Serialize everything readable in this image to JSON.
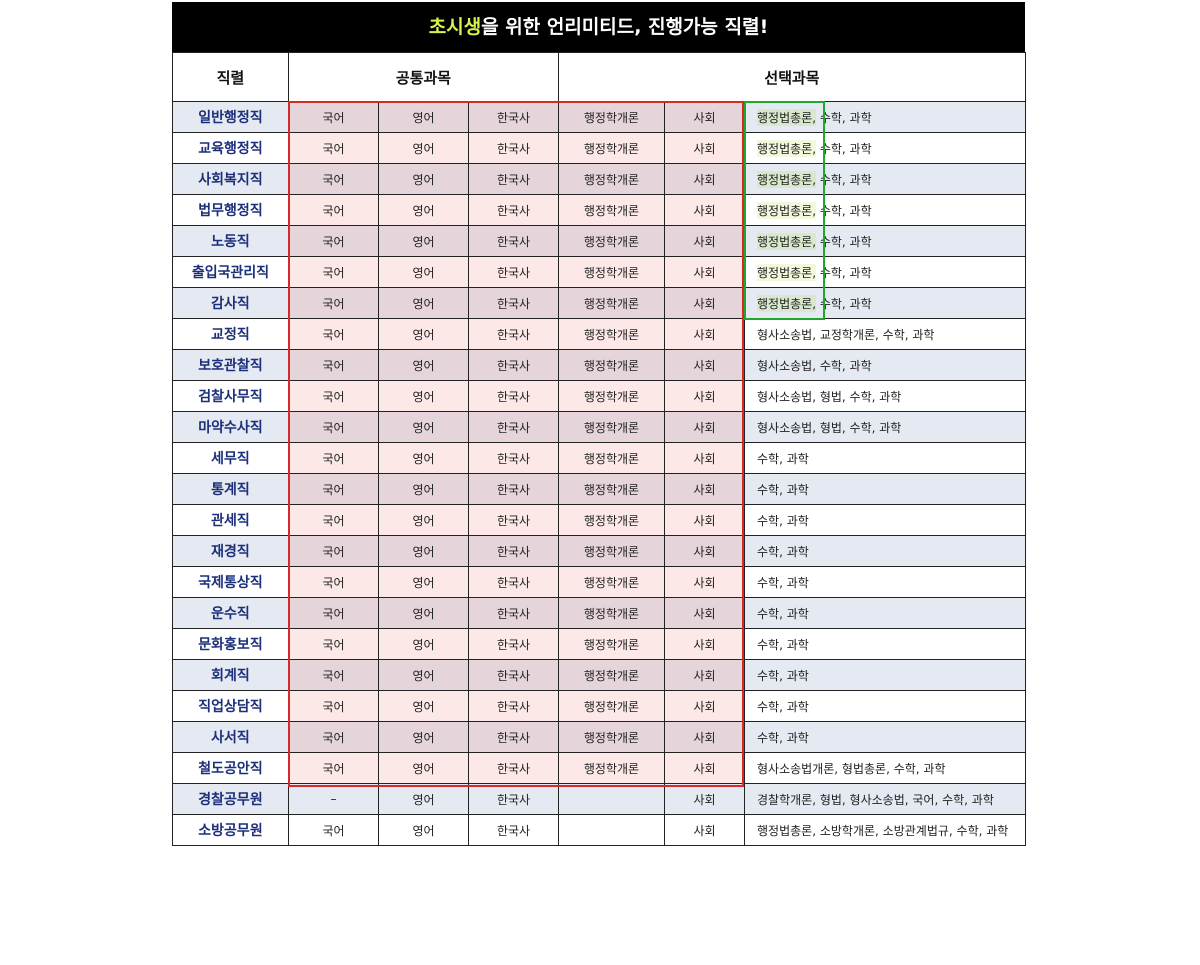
{
  "banner": {
    "highlight": "초시생",
    "rest": "을 위한 언리미티드, 진행가능 직렬!"
  },
  "headers": {
    "job": "직렬",
    "common": "공통과목",
    "elective": "선택과목"
  },
  "colors": {
    "banner_bg": "#000000",
    "highlight": "#d9f24a",
    "common_box": "#d42a2a",
    "law_box": "#1fa82b",
    "job_text": "#1c2f7a"
  },
  "rows": [
    {
      "job": "일반행정직",
      "c1": "국어",
      "c2": "영어",
      "c3": "한국사",
      "c4": "행정학개론",
      "c5": "사회",
      "law": "행정법총론,",
      "rest": " 수학, 과학"
    },
    {
      "job": "교육행정직",
      "c1": "국어",
      "c2": "영어",
      "c3": "한국사",
      "c4": "행정학개론",
      "c5": "사회",
      "law": "행정법총론,",
      "rest": " 수학, 과학"
    },
    {
      "job": "사회복지직",
      "c1": "국어",
      "c2": "영어",
      "c3": "한국사",
      "c4": "행정학개론",
      "c5": "사회",
      "law": "행정법총론,",
      "rest": " 수학, 과학"
    },
    {
      "job": "법무행정직",
      "c1": "국어",
      "c2": "영어",
      "c3": "한국사",
      "c4": "행정학개론",
      "c5": "사회",
      "law": "행정법총론,",
      "rest": " 수학, 과학"
    },
    {
      "job": "노동직",
      "c1": "국어",
      "c2": "영어",
      "c3": "한국사",
      "c4": "행정학개론",
      "c5": "사회",
      "law": "행정법총론,",
      "rest": " 수학, 과학"
    },
    {
      "job": "출입국관리직",
      "c1": "국어",
      "c2": "영어",
      "c3": "한국사",
      "c4": "행정학개론",
      "c5": "사회",
      "law": "행정법총론,",
      "rest": " 수학, 과학"
    },
    {
      "job": "감사직",
      "c1": "국어",
      "c2": "영어",
      "c3": "한국사",
      "c4": "행정학개론",
      "c5": "사회",
      "law": "행정법총론,",
      "rest": " 수학, 과학"
    },
    {
      "job": "교정직",
      "c1": "국어",
      "c2": "영어",
      "c3": "한국사",
      "c4": "행정학개론",
      "c5": "사회",
      "law": "",
      "rest": "형사소송법, 교정학개론, 수학, 과학"
    },
    {
      "job": "보호관찰직",
      "c1": "국어",
      "c2": "영어",
      "c3": "한국사",
      "c4": "행정학개론",
      "c5": "사회",
      "law": "",
      "rest": "형사소송법, 수학, 과학"
    },
    {
      "job": "검찰사무직",
      "c1": "국어",
      "c2": "영어",
      "c3": "한국사",
      "c4": "행정학개론",
      "c5": "사회",
      "law": "",
      "rest": "형사소송법, 형법, 수학, 과학"
    },
    {
      "job": "마약수사직",
      "c1": "국어",
      "c2": "영어",
      "c3": "한국사",
      "c4": "행정학개론",
      "c5": "사회",
      "law": "",
      "rest": "형사소송법, 형법, 수학, 과학"
    },
    {
      "job": "세무직",
      "c1": "국어",
      "c2": "영어",
      "c3": "한국사",
      "c4": "행정학개론",
      "c5": "사회",
      "law": "",
      "rest": "수학, 과학"
    },
    {
      "job": "통계직",
      "c1": "국어",
      "c2": "영어",
      "c3": "한국사",
      "c4": "행정학개론",
      "c5": "사회",
      "law": "",
      "rest": "수학, 과학"
    },
    {
      "job": "관세직",
      "c1": "국어",
      "c2": "영어",
      "c3": "한국사",
      "c4": "행정학개론",
      "c5": "사회",
      "law": "",
      "rest": "수학, 과학"
    },
    {
      "job": "재경직",
      "c1": "국어",
      "c2": "영어",
      "c3": "한국사",
      "c4": "행정학개론",
      "c5": "사회",
      "law": "",
      "rest": "수학, 과학"
    },
    {
      "job": "국제통상직",
      "c1": "국어",
      "c2": "영어",
      "c3": "한국사",
      "c4": "행정학개론",
      "c5": "사회",
      "law": "",
      "rest": "수학, 과학"
    },
    {
      "job": "운수직",
      "c1": "국어",
      "c2": "영어",
      "c3": "한국사",
      "c4": "행정학개론",
      "c5": "사회",
      "law": "",
      "rest": "수학, 과학"
    },
    {
      "job": "문화홍보직",
      "c1": "국어",
      "c2": "영어",
      "c3": "한국사",
      "c4": "행정학개론",
      "c5": "사회",
      "law": "",
      "rest": "수학, 과학"
    },
    {
      "job": "회계직",
      "c1": "국어",
      "c2": "영어",
      "c3": "한국사",
      "c4": "행정학개론",
      "c5": "사회",
      "law": "",
      "rest": "수학, 과학"
    },
    {
      "job": "직업상담직",
      "c1": "국어",
      "c2": "영어",
      "c3": "한국사",
      "c4": "행정학개론",
      "c5": "사회",
      "law": "",
      "rest": "수학, 과학"
    },
    {
      "job": "사서직",
      "c1": "국어",
      "c2": "영어",
      "c3": "한국사",
      "c4": "행정학개론",
      "c5": "사회",
      "law": "",
      "rest": "수학, 과학"
    },
    {
      "job": "철도공안직",
      "c1": "국어",
      "c2": "영어",
      "c3": "한국사",
      "c4": "행정학개론",
      "c5": "사회",
      "law": "",
      "rest": "형사소송법개론, 형법총론, 수학, 과학"
    },
    {
      "job": "경찰공무원",
      "c1": "–",
      "c2": "영어",
      "c3": "한국사",
      "c4": "",
      "c5": "사회",
      "law": "",
      "rest": "경찰학개론, 형법, 형사소송법, 국어, 수학, 과학"
    },
    {
      "job": "소방공무원",
      "c1": "국어",
      "c2": "영어",
      "c3": "한국사",
      "c4": "",
      "c5": "사회",
      "law": "",
      "rest": "행정법총론, 소방학개론, 소방관계법규, 수학, 과학"
    }
  ]
}
